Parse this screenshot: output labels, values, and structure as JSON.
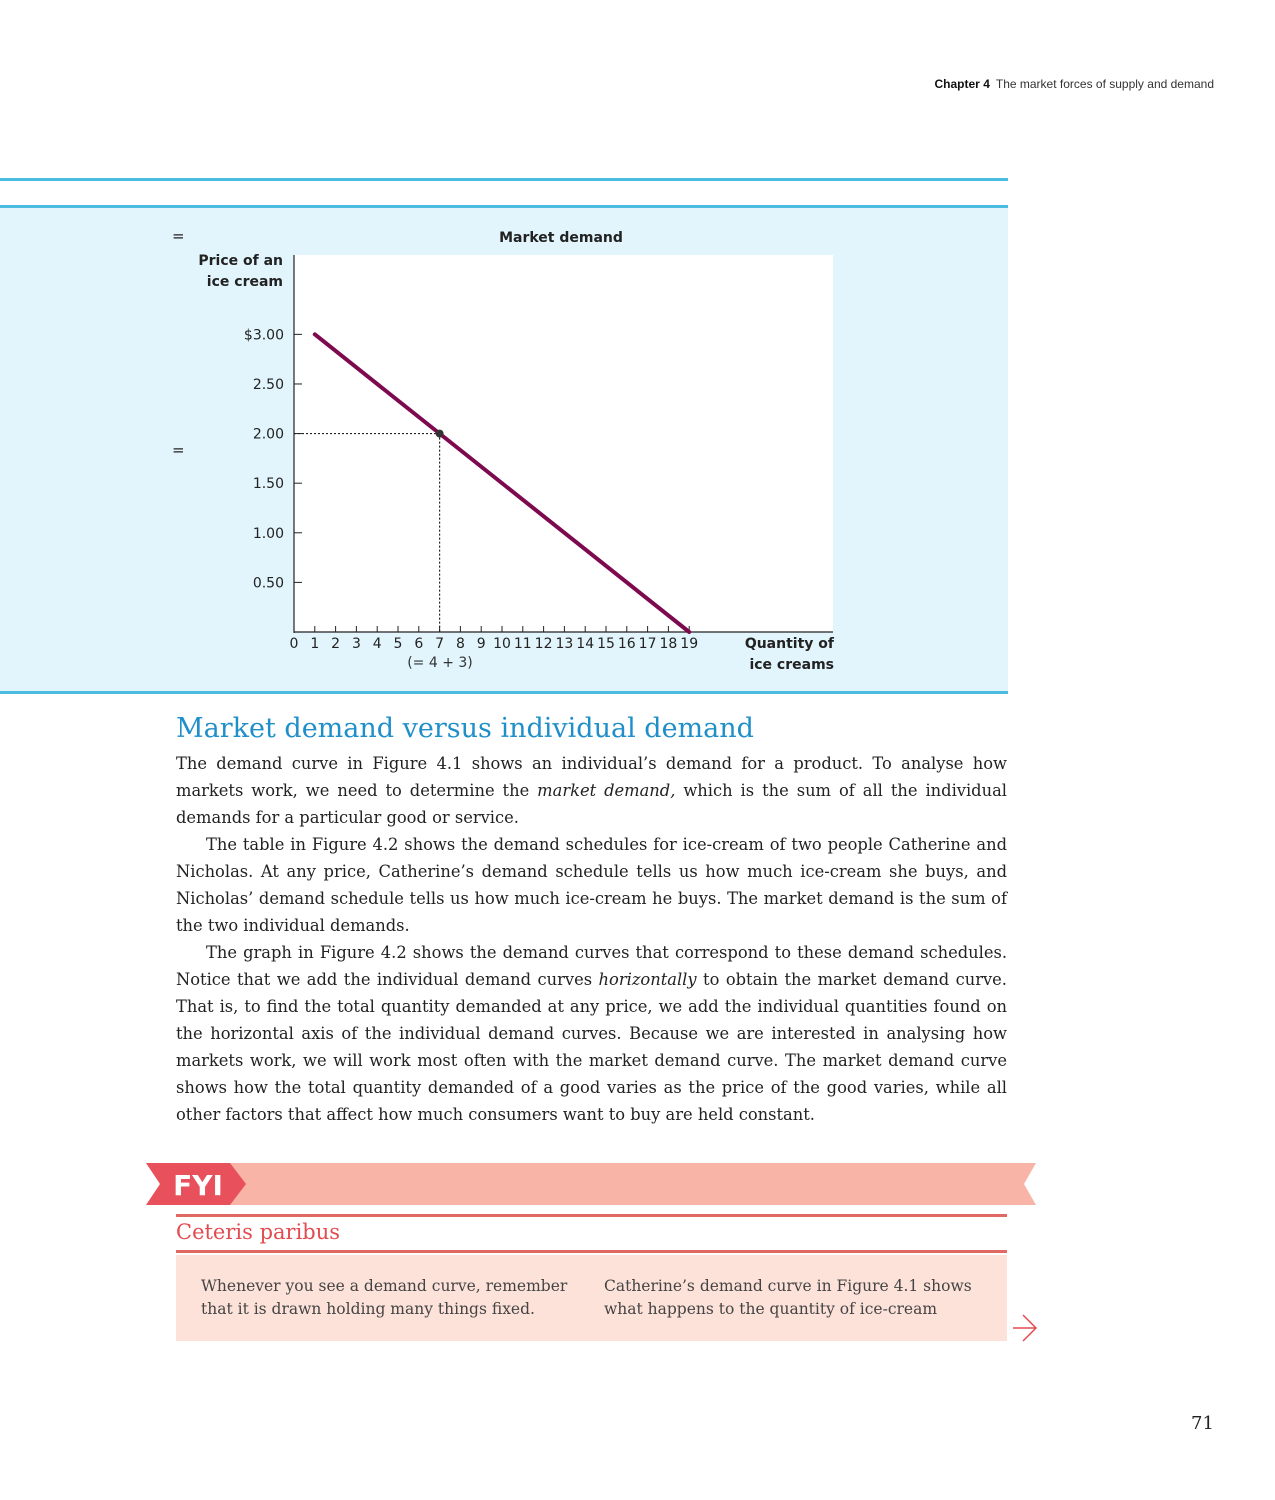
{
  "running_head": {
    "chapter": "Chapter 4",
    "title": "The market forces of supply and demand"
  },
  "figure": {
    "equals_top": "=",
    "equals_mid": "=",
    "point_note": "(= 4 + 3)"
  },
  "chart_data": {
    "type": "line",
    "title": "Market demand",
    "ylabel_lines": [
      "Price of an",
      "ice cream"
    ],
    "xlabel_lines": [
      "Quantity of",
      "ice creams"
    ],
    "y_ticks": [
      {
        "value": 3.0,
        "label": "$3.00"
      },
      {
        "value": 2.5,
        "label": "2.50"
      },
      {
        "value": 2.0,
        "label": "2.00"
      },
      {
        "value": 1.5,
        "label": "1.50"
      },
      {
        "value": 1.0,
        "label": "1.00"
      },
      {
        "value": 0.5,
        "label": "0.50"
      }
    ],
    "x_ticks": [
      "0",
      "1",
      "2",
      "3",
      "4",
      "5",
      "6",
      "7",
      "8",
      "9",
      "10",
      "11",
      "12",
      "13",
      "14",
      "15",
      "16",
      "17",
      "18",
      "19"
    ],
    "xlim": [
      0,
      26
    ],
    "ylim": [
      0,
      3.8
    ],
    "series": [
      {
        "values": [
          [
            1,
            3.0
          ],
          [
            19,
            0.0
          ]
        ],
        "color": "#7d0a4e"
      }
    ],
    "highlight_point": {
      "x": 7,
      "y": 2.0
    }
  },
  "section": {
    "heading": "Market demand versus individual demand",
    "p1_a": "The demand curve in Figure 4.1 shows an individual’s demand for a product. To analyse how markets work, we need to determine the ",
    "p1_em": "market demand,",
    "p1_b": " which is the sum of all the individual demands for a particular good or service.",
    "p2": "The table in Figure 4.2 shows the demand schedules for ice-cream of two people   Catherine and Nicholas. At any price, Catherine’s demand schedule tells us how much ice-cream she buys, and Nicholas’ demand schedule tells us how much ice-cream he buys. The market demand is the sum of the two individual demands.",
    "p3_a": "The graph in Figure 4.2 shows the demand curves that correspond to these demand schedules. Notice that we add the individual demand curves ",
    "p3_em": "horizontally",
    "p3_b": " to obtain the market demand curve. That is, to find the total quantity demanded at any price, we add the individual quantities found on the horizontal axis of the individual demand curves. Because we are interested in analysing how markets work, we will work most often with the market demand curve. The market demand curve shows how the total quantity demanded of a good varies as the price of the good varies, while all other factors that affect how much consumers want to buy are held constant."
  },
  "fyi": {
    "label": "FYI",
    "title": "Ceteris paribus",
    "col1": "Whenever you see a demand curve, remember that it is drawn holding many things fixed.",
    "col2": "Catherine’s demand curve in Figure 4.1 shows what happens to the quantity of ice-cream",
    "accent_color": "#e8505b",
    "banner_color": "#f8b4a6"
  },
  "page_number": "71"
}
